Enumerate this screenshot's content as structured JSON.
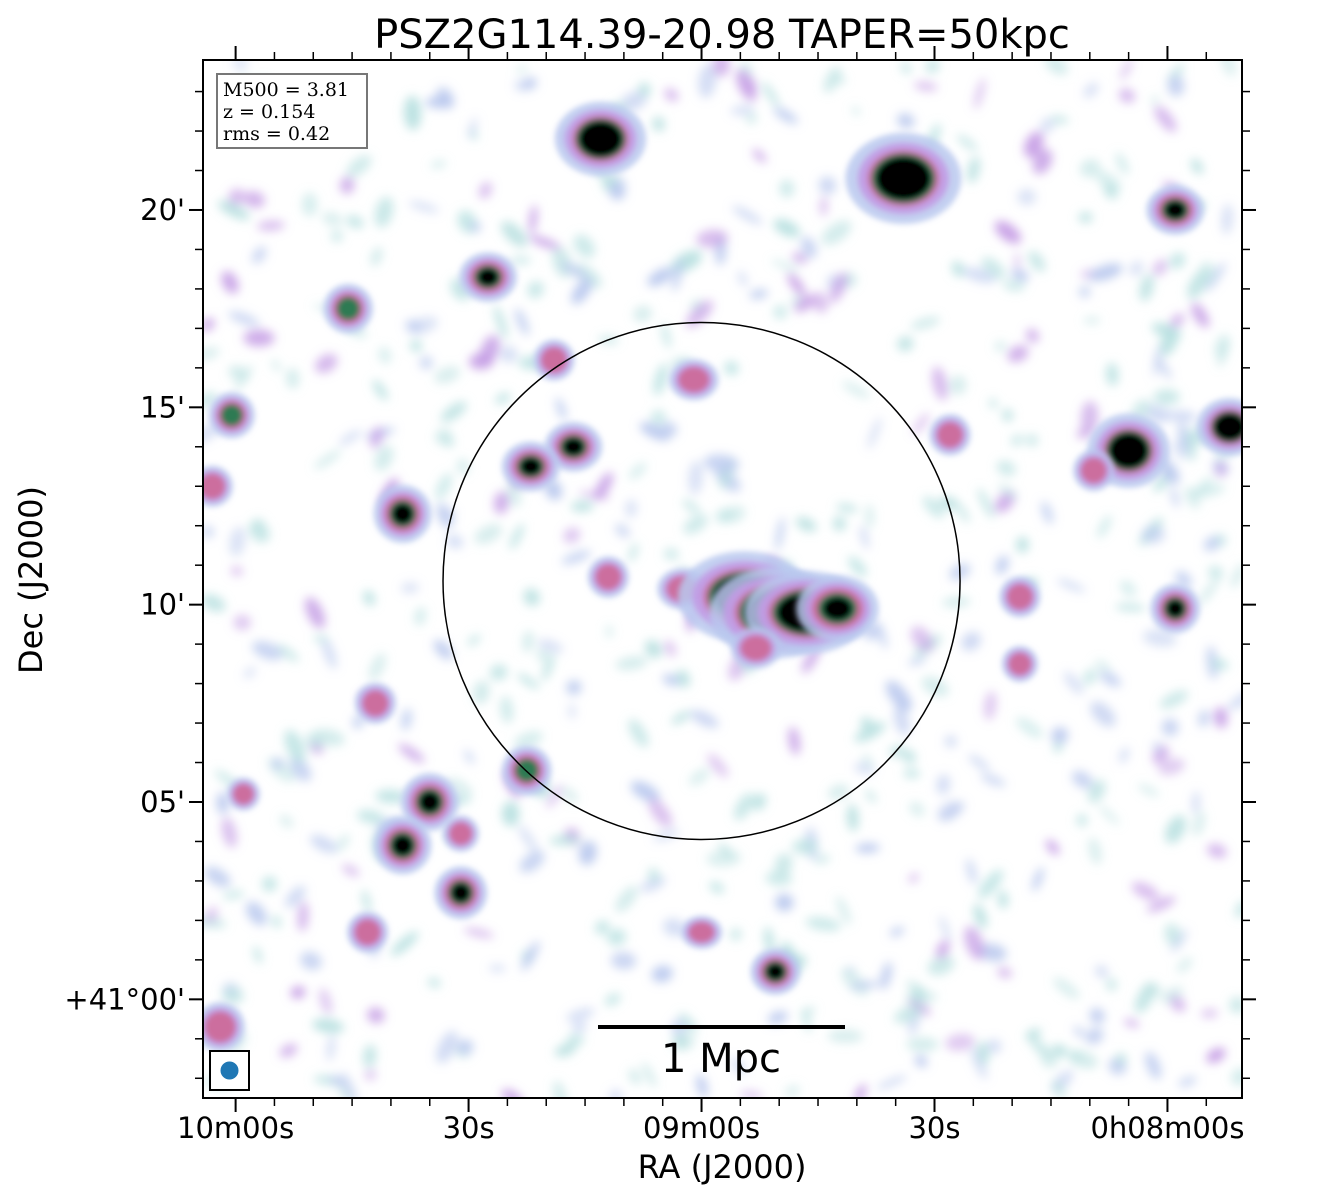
{
  "chart_data": {
    "type": "image",
    "title": "PSZ2G114.39-20.98 TAPER=50kpc",
    "xlabel": "RA (J2000)",
    "ylabel": "Dec (J2000)",
    "x_ticks": [
      {
        "label": "10m00s",
        "ra_seconds_offset": 60
      },
      {
        "label": "30s",
        "ra_seconds_offset": 30
      },
      {
        "label": "09m00s",
        "ra_seconds_offset": 0
      },
      {
        "label": "30s",
        "ra_seconds_offset": -30
      },
      {
        "label": "0h08m00s",
        "ra_seconds_offset": -60
      }
    ],
    "y_ticks": [
      {
        "label": "+41°00'",
        "dec_arcmin": 0
      },
      {
        "label": "05'",
        "dec_arcmin": 5
      },
      {
        "label": "10'",
        "dec_arcmin": 10
      },
      {
        "label": "15'",
        "dec_arcmin": 15
      },
      {
        "label": "20'",
        "dec_arcmin": 20
      }
    ],
    "xlim_ra_seconds_offset": [
      64.2,
      -69.6
    ],
    "ylim_dec_arcmin": [
      -2.5,
      23.8
    ],
    "info_box": [
      "M500 = 3.81",
      "z = 0.154",
      "rms = 0.42"
    ],
    "scale_bar_label": "1 Mpc",
    "circle": {
      "center_ra_seconds_offset": 0,
      "center_dec_arcmin": 10.6,
      "radius_arcmin": 6.55
    },
    "beam_color": "#1f77b4",
    "colormap": [
      "#b8e0e0",
      "#b9c8ee",
      "#c39ae4",
      "#cc6c9a",
      "#2e7a52",
      "#000000"
    ],
    "sources": [
      {
        "ra": 13.0,
        "dec": 21.8,
        "rx": 0.55,
        "ry": 0.45,
        "peak": 1.0
      },
      {
        "ra": -26.0,
        "dec": 20.8,
        "rx": 0.7,
        "ry": 0.55,
        "peak": 1.0
      },
      {
        "ra": -61.0,
        "dec": 20.0,
        "rx": 0.35,
        "ry": 0.3,
        "peak": 0.62
      },
      {
        "ra": 27.5,
        "dec": 18.3,
        "rx": 0.35,
        "ry": 0.3,
        "peak": 0.65
      },
      {
        "ra": 45.5,
        "dec": 17.5,
        "rx": 0.3,
        "ry": 0.3,
        "peak": 0.55
      },
      {
        "ra": 19.0,
        "dec": 16.2,
        "rx": 0.25,
        "ry": 0.25,
        "peak": 0.45
      },
      {
        "ra": 1.0,
        "dec": 15.7,
        "rx": 0.3,
        "ry": 0.25,
        "peak": 0.5
      },
      {
        "ra": 60.5,
        "dec": 14.8,
        "rx": 0.28,
        "ry": 0.28,
        "peak": 0.55
      },
      {
        "ra": 16.5,
        "dec": 14.0,
        "rx": 0.35,
        "ry": 0.3,
        "peak": 0.65
      },
      {
        "ra": 22.0,
        "dec": 13.5,
        "rx": 0.35,
        "ry": 0.3,
        "peak": 0.6
      },
      {
        "ra": -32.0,
        "dec": 14.3,
        "rx": 0.25,
        "ry": 0.25,
        "peak": 0.45
      },
      {
        "ra": -55.0,
        "dec": 13.9,
        "rx": 0.5,
        "ry": 0.45,
        "peak": 1.0
      },
      {
        "ra": -68.0,
        "dec": 14.5,
        "rx": 0.4,
        "ry": 0.35,
        "peak": 0.9
      },
      {
        "ra": -50.5,
        "dec": 13.4,
        "rx": 0.25,
        "ry": 0.25,
        "peak": 0.45
      },
      {
        "ra": 38.5,
        "dec": 12.3,
        "rx": 0.35,
        "ry": 0.35,
        "peak": 0.7
      },
      {
        "ra": 12.0,
        "dec": 10.7,
        "rx": 0.25,
        "ry": 0.25,
        "peak": 0.45
      },
      {
        "ra": 2.5,
        "dec": 10.4,
        "rx": 0.3,
        "ry": 0.25,
        "peak": 0.45
      },
      {
        "ra": -5.5,
        "dec": 10.2,
        "rx": 0.8,
        "ry": 0.55,
        "peak": 1.0
      },
      {
        "ra": -9.5,
        "dec": 9.8,
        "rx": 0.8,
        "ry": 0.55,
        "peak": 1.0
      },
      {
        "ra": -13.5,
        "dec": 9.8,
        "rx": 0.75,
        "ry": 0.5,
        "peak": 1.0
      },
      {
        "ra": -17.5,
        "dec": 9.9,
        "rx": 0.5,
        "ry": 0.4,
        "peak": 0.8
      },
      {
        "ra": -7.0,
        "dec": 8.9,
        "rx": 0.3,
        "ry": 0.25,
        "peak": 0.45
      },
      {
        "ra": -41.0,
        "dec": 10.2,
        "rx": 0.25,
        "ry": 0.25,
        "peak": 0.45
      },
      {
        "ra": -61.0,
        "dec": 9.9,
        "rx": 0.3,
        "ry": 0.3,
        "peak": 0.6
      },
      {
        "ra": -41.0,
        "dec": 8.5,
        "rx": 0.22,
        "ry": 0.22,
        "peak": 0.42
      },
      {
        "ra": 42.0,
        "dec": 7.5,
        "rx": 0.25,
        "ry": 0.25,
        "peak": 0.45
      },
      {
        "ra": 22.5,
        "dec": 5.8,
        "rx": 0.3,
        "ry": 0.3,
        "peak": 0.55
      },
      {
        "ra": 35.0,
        "dec": 5.0,
        "rx": 0.35,
        "ry": 0.35,
        "peak": 0.65
      },
      {
        "ra": 38.5,
        "dec": 3.9,
        "rx": 0.35,
        "ry": 0.35,
        "peak": 0.7
      },
      {
        "ra": 31.0,
        "dec": 4.2,
        "rx": 0.22,
        "ry": 0.22,
        "peak": 0.42
      },
      {
        "ra": 31.0,
        "dec": 2.7,
        "rx": 0.32,
        "ry": 0.32,
        "peak": 0.62
      },
      {
        "ra": 43.0,
        "dec": 1.7,
        "rx": 0.25,
        "ry": 0.25,
        "peak": 0.45
      },
      {
        "ra": -9.5,
        "dec": 0.7,
        "rx": 0.3,
        "ry": 0.28,
        "peak": 0.6
      },
      {
        "ra": 0.0,
        "dec": 1.7,
        "rx": 0.25,
        "ry": 0.2,
        "peak": 0.42
      },
      {
        "ra": 59.0,
        "dec": 5.2,
        "rx": 0.2,
        "ry": 0.2,
        "peak": 0.4
      },
      {
        "ra": 63.0,
        "dec": 13.0,
        "rx": 0.25,
        "ry": 0.25,
        "peak": 0.42
      },
      {
        "ra": 62.0,
        "dec": -0.7,
        "rx": 0.3,
        "ry": 0.3,
        "peak": 0.45
      }
    ]
  }
}
